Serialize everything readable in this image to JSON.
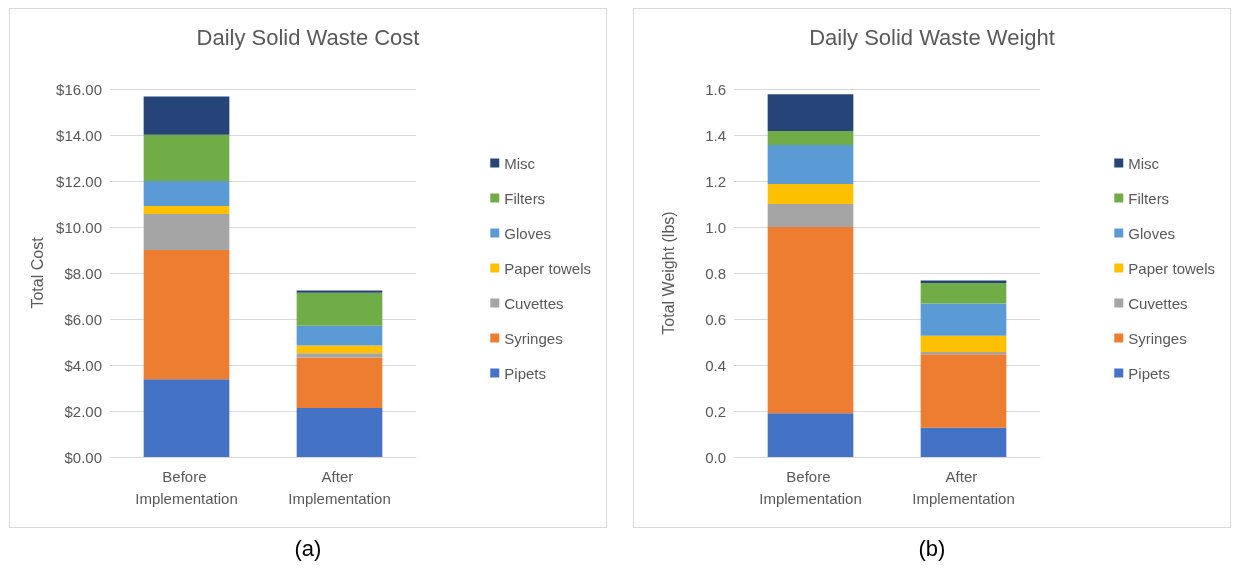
{
  "chart_data": [
    {
      "type": "bar",
      "stacked": true,
      "title": "Daily Solid Waste Cost",
      "ylabel": "Total Cost",
      "categories": [
        "Before Implementation",
        "After Implementation"
      ],
      "series": [
        {
          "name": "Pipets",
          "color": "#4472c4",
          "values": [
            3.38,
            2.13
          ]
        },
        {
          "name": "Syringes",
          "color": "#ed7d31",
          "values": [
            5.62,
            2.2
          ]
        },
        {
          "name": "Cuvettes",
          "color": "#a5a5a5",
          "values": [
            1.57,
            0.18
          ]
        },
        {
          "name": "Paper towels",
          "color": "#ffc000",
          "values": [
            0.34,
            0.34
          ]
        },
        {
          "name": "Gloves",
          "color": "#5b9bd5",
          "values": [
            1.09,
            0.86
          ]
        },
        {
          "name": "Filters",
          "color": "#70ad47",
          "values": [
            2.01,
            1.43
          ]
        },
        {
          "name": "Misc",
          "color": "#264478",
          "values": [
            1.66,
            0.1
          ]
        }
      ],
      "ylim": [
        0,
        16
      ],
      "yticks": [
        {
          "value": 0,
          "label": "$0.00"
        },
        {
          "value": 2,
          "label": "$2.00"
        },
        {
          "value": 4,
          "label": "$4.00"
        },
        {
          "value": 6,
          "label": "$6.00"
        },
        {
          "value": 8,
          "label": "$8.00"
        },
        {
          "value": 10,
          "label": "$10.00"
        },
        {
          "value": 12,
          "label": "$12.00"
        },
        {
          "value": 14,
          "label": "$14.00"
        },
        {
          "value": 16,
          "label": "$16.00"
        }
      ],
      "grid": "y",
      "legend": "right",
      "annotations": [
        "(a)"
      ]
    },
    {
      "type": "bar",
      "stacked": true,
      "title": "Daily Solid Waste Weight",
      "ylabel": "Total Weight (lbs)",
      "categories": [
        "Before Implementation",
        "After Implementation"
      ],
      "series": [
        {
          "name": "Pipets",
          "color": "#4472c4",
          "values": [
            0.19,
            0.127
          ]
        },
        {
          "name": "Syringes",
          "color": "#ed7d31",
          "values": [
            0.81,
            0.32
          ]
        },
        {
          "name": "Cuvettes",
          "color": "#a5a5a5",
          "values": [
            0.1,
            0.01
          ]
        },
        {
          "name": "Paper towels",
          "color": "#ffc000",
          "values": [
            0.087,
            0.07
          ]
        },
        {
          "name": "Gloves",
          "color": "#5b9bd5",
          "values": [
            0.17,
            0.14
          ]
        },
        {
          "name": "Filters",
          "color": "#70ad47",
          "values": [
            0.06,
            0.09
          ]
        },
        {
          "name": "Misc",
          "color": "#264478",
          "values": [
            0.16,
            0.01
          ]
        }
      ],
      "ylim": [
        0,
        1.6
      ],
      "yticks": [
        {
          "value": 0,
          "label": "0.0"
        },
        {
          "value": 0.2,
          "label": "0.2"
        },
        {
          "value": 0.4,
          "label": "0.4"
        },
        {
          "value": 0.6,
          "label": "0.6"
        },
        {
          "value": 0.8,
          "label": "0.8"
        },
        {
          "value": 1,
          "label": "1.0"
        },
        {
          "value": 1.2,
          "label": "1.2"
        },
        {
          "value": 1.4,
          "label": "1.4"
        },
        {
          "value": 1.6,
          "label": "1.6"
        }
      ],
      "grid": "y",
      "legend": "right",
      "annotations": [
        "(b)"
      ]
    }
  ]
}
